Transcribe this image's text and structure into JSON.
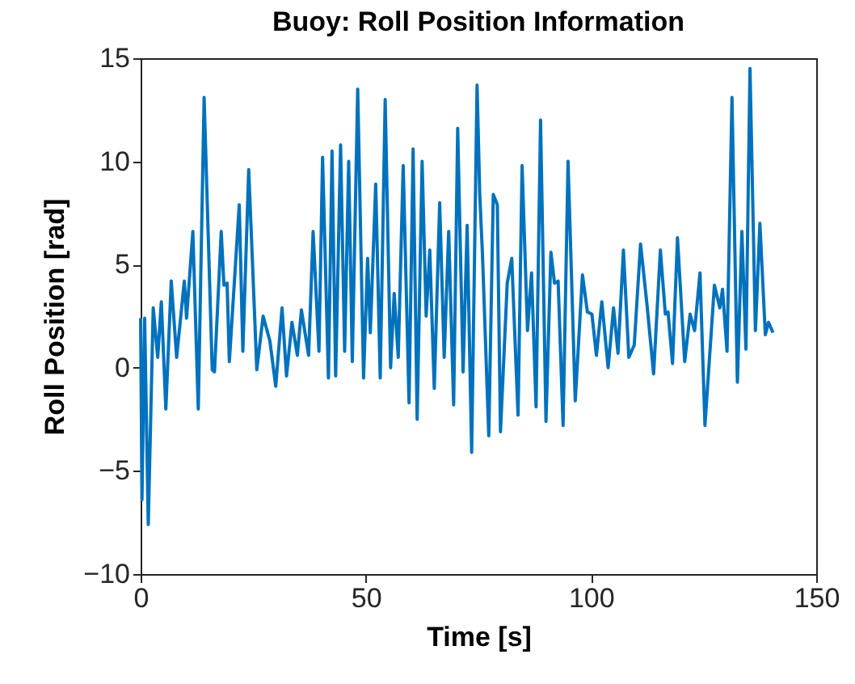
{
  "chart_data": {
    "type": "line",
    "title": "Buoy: Roll Position Information",
    "xlabel": "Time [s]",
    "ylabel": "Roll Position [rad]",
    "x": [
      0,
      0.3,
      0.9,
      1.7,
      2.8,
      3.8,
      4.6,
      5.6,
      6.8,
      8,
      9.7,
      10.2,
      11.6,
      12.8,
      14.1,
      15.9,
      16.4,
      17.9,
      18.5,
      19.2,
      19.7,
      21.9,
      22.7,
      24,
      25.8,
      27.2,
      28.7,
      30,
      31.4,
      32.4,
      33.6,
      34.8,
      35.7,
      37.3,
      38.3,
      39.6,
      40.4,
      41.7,
      42.5,
      43.3,
      44.4,
      45.3,
      46.2,
      47,
      48.2,
      49.5,
      50.4,
      51,
      52.2,
      53.2,
      54.3,
      55.5,
      56.3,
      57.2,
      58.3,
      59.6,
      60.5,
      61.4,
      62.5,
      63.4,
      64.2,
      65.2,
      66.4,
      67.4,
      68.4,
      69.5,
      70.4,
      71.6,
      72.5,
      73.5,
      74.7,
      75.3,
      75.9,
      77.3,
      78.3,
      79.2,
      79.9,
      81.4,
      82.4,
      83.8,
      84.7,
      85.9,
      86.8,
      87.8,
      88.8,
      90,
      91.1,
      91.9,
      92.7,
      93.8,
      94.9,
      96.5,
      98.1,
      99.2,
      100.2,
      101.2,
      102.4,
      103.8,
      105,
      106,
      107.2,
      108.4,
      109.6,
      111,
      112.5,
      113.9,
      115.4,
      116.5,
      117.1,
      118.1,
      119.2,
      120.8,
      122,
      123,
      124.2,
      125.3,
      127.4,
      128.6,
      129.2,
      130.2,
      131.3,
      132.5,
      133.5,
      134.4,
      135.3,
      136.5,
      137.5,
      138.7,
      139.4,
      140.4
    ],
    "series": [
      {
        "color": "#0072bd",
        "values": [
          2.4,
          -6.4,
          2.4,
          -7.6,
          2.9,
          0.5,
          3.2,
          -2,
          4.2,
          0.5,
          4.2,
          2.4,
          6.6,
          -2,
          13.1,
          -0.1,
          -0.2,
          6.6,
          4,
          4.1,
          0.3,
          7.9,
          0.8,
          9.6,
          -0.1,
          2.5,
          1.3,
          -0.9,
          2.9,
          -0.4,
          2.2,
          0.6,
          2.8,
          0.6,
          6.6,
          0.8,
          10.2,
          -0.5,
          10.5,
          -0.4,
          10.8,
          0.8,
          10,
          0.3,
          13.5,
          -0.5,
          5.3,
          1.7,
          8.9,
          -0.5,
          13,
          0,
          3.6,
          0.5,
          9.8,
          -1.7,
          10.6,
          -2.5,
          10,
          2.5,
          5.7,
          -1,
          8,
          0.5,
          6.6,
          -1.8,
          11.6,
          -0.2,
          6.9,
          -4.1,
          13.7,
          8.4,
          5.5,
          -3.3,
          8.4,
          7.9,
          -3.1,
          4.1,
          5.3,
          -2.3,
          9.8,
          1.8,
          4.6,
          -1.9,
          12,
          -2.6,
          5.6,
          4.1,
          4.2,
          -2.8,
          10,
          -1.6,
          4.5,
          2.7,
          2.6,
          0.6,
          3.2,
          0,
          2.9,
          0.7,
          5.7,
          0.5,
          1.1,
          6,
          2.9,
          -0.3,
          5.7,
          2.6,
          2.7,
          0.2,
          6.3,
          0.3,
          2.6,
          1.8,
          4.6,
          -2.8,
          4,
          2.9,
          3.8,
          0.8,
          13.1,
          -0.7,
          6.6,
          0.9,
          14.5,
          1.8,
          7,
          1.6,
          2.2,
          1.7
        ]
      }
    ],
    "xlim": [
      0,
      150
    ],
    "xticks": [
      0,
      50,
      100,
      150
    ],
    "ylim": [
      -10,
      15
    ],
    "yticks": [
      -10,
      -5,
      0,
      5,
      10,
      15
    ],
    "grid": false,
    "line_style": "solid",
    "marker": "none"
  }
}
